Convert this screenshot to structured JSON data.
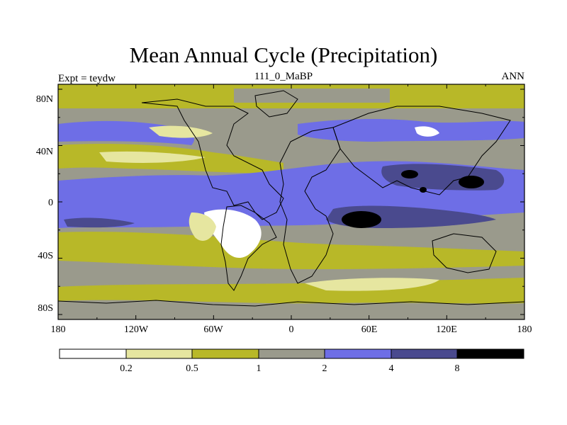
{
  "title": "Mean Annual Cycle (Precipitation)",
  "left_label": "Expt = teydw",
  "center_label": "111_0_MaBP",
  "right_label": "ANN",
  "colors": {
    "lt0.2": "#ffffff",
    "0.2-0.5": "#e6e6a0",
    "0.5-1": "#b8b828",
    "1-2": "#9a9a8c",
    "2-4": "#6e6ee6",
    "4-8": "#4a4a8e",
    "gt8": "#000000",
    "coast": "#000000"
  },
  "axes": {
    "y_ticks": [
      "80N",
      "40N",
      "0",
      "40S",
      "80S"
    ],
    "x_ticks": [
      "180",
      "120W",
      "60W",
      "0",
      "60E",
      "120E",
      "180"
    ]
  },
  "colorbar": {
    "labels": [
      "0.2",
      "0.5",
      "1",
      "2",
      "4",
      "8"
    ]
  }
}
